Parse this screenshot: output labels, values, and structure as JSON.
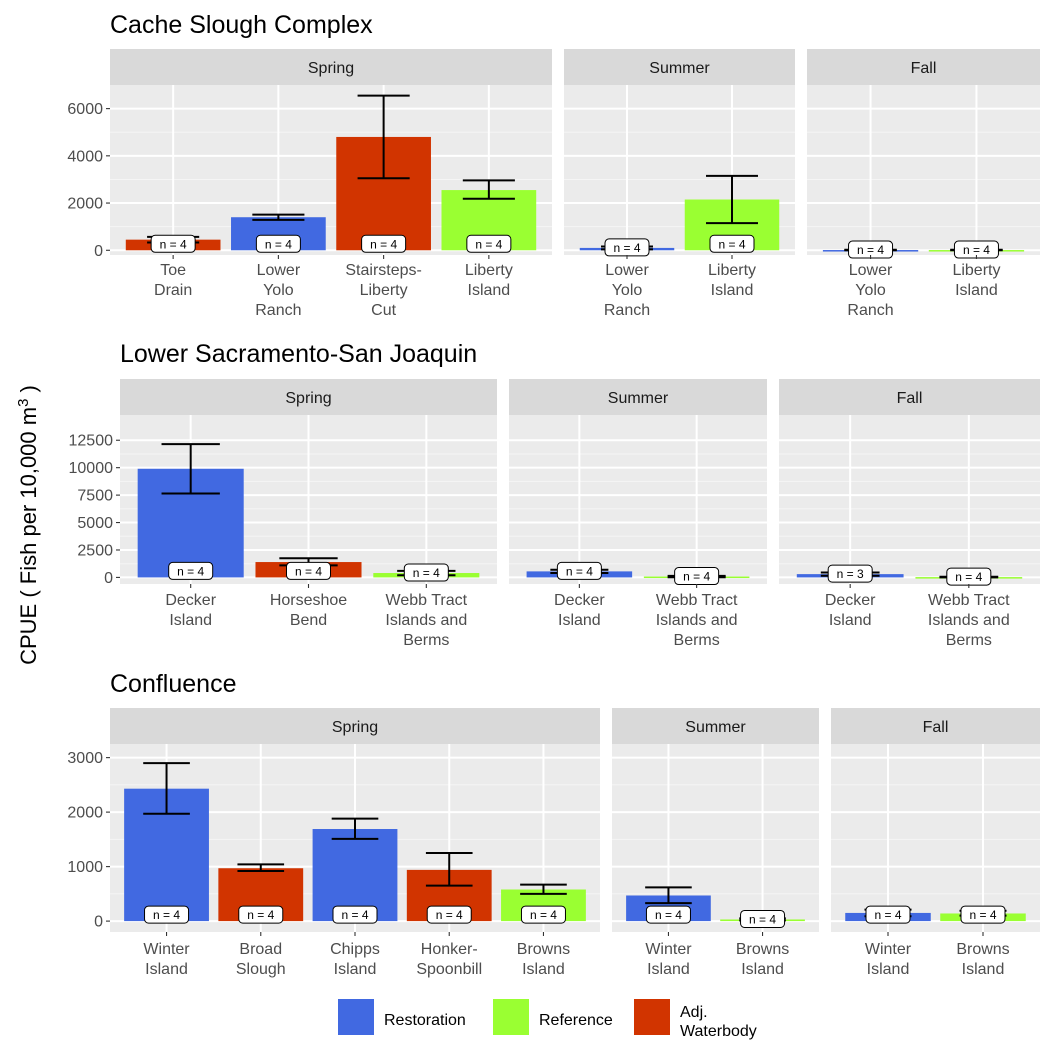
{
  "y_axis_label": "CPUE ( Fish per 10,000 m",
  "y_axis_label_sup": "3",
  "legend": [
    {
      "label": "Restoration",
      "color": "#4169E1"
    },
    {
      "label": "Reference",
      "color": "#9AFF32"
    },
    {
      "label": "Adj.\nWaterbody",
      "color": "#D13400"
    }
  ],
  "chart_data": [
    {
      "type": "bar",
      "title": "Cache Slough Complex",
      "yticks": [
        0,
        2000,
        4000,
        6000
      ],
      "panels": [
        {
          "facet": "Spring",
          "bars": [
            {
              "site": "Toe\nDrain",
              "value": 450,
              "lo": 330,
              "hi": 570,
              "n": "n = 4",
              "group": "Adj. Waterbody"
            },
            {
              "site": "Lower\nYolo\nRanch",
              "value": 1400,
              "lo": 1290,
              "hi": 1510,
              "n": "n = 4",
              "group": "Restoration"
            },
            {
              "site": "Stairsteps-\nLiberty\nCut",
              "value": 4800,
              "lo": 3050,
              "hi": 6550,
              "n": "n = 4",
              "group": "Adj. Waterbody"
            },
            {
              "site": "Liberty\nIsland",
              "value": 2550,
              "lo": 2180,
              "hi": 2960,
              "n": "n = 4",
              "group": "Reference"
            }
          ]
        },
        {
          "facet": "Summer",
          "bars": [
            {
              "site": "Lower\nYolo\nRanch",
              "value": 100,
              "lo": 40,
              "hi": 160,
              "n": "n = 4",
              "group": "Restoration"
            },
            {
              "site": "Liberty\nIsland",
              "value": 2150,
              "lo": 1150,
              "hi": 3150,
              "n": "n = 4",
              "group": "Reference"
            }
          ]
        },
        {
          "facet": "Fall",
          "bars": [
            {
              "site": "Lower\nYolo\nRanch",
              "value": 10,
              "lo": 0,
              "hi": 20,
              "n": "n = 4",
              "group": "Restoration"
            },
            {
              "site": "Liberty\nIsland",
              "value": 10,
              "lo": 0,
              "hi": 20,
              "n": "n = 4",
              "group": "Reference"
            }
          ]
        }
      ]
    },
    {
      "type": "bar",
      "title": "Lower Sacramento-San Joaquin",
      "yticks": [
        0,
        2500,
        5000,
        7500,
        10000,
        12500
      ],
      "panels": [
        {
          "facet": "Spring",
          "bars": [
            {
              "site": "Decker\nIsland",
              "value": 9900,
              "lo": 7650,
              "hi": 12150,
              "n": "n = 4",
              "group": "Restoration"
            },
            {
              "site": "Horseshoe\nBend",
              "value": 1400,
              "lo": 1100,
              "hi": 1750,
              "n": "n = 4",
              "group": "Adj. Waterbody"
            },
            {
              "site": "Webb Tract\nIslands and\nBerms",
              "value": 400,
              "lo": 200,
              "hi": 600,
              "n": "n = 4",
              "group": "Reference"
            }
          ]
        },
        {
          "facet": "Summer",
          "bars": [
            {
              "site": "Decker\nIsland",
              "value": 550,
              "lo": 400,
              "hi": 700,
              "n": "n = 4",
              "group": "Restoration"
            },
            {
              "site": "Webb Tract\nIslands and\nBerms",
              "value": 80,
              "lo": 20,
              "hi": 140,
              "n": "n = 4",
              "group": "Reference"
            }
          ]
        },
        {
          "facet": "Fall",
          "bars": [
            {
              "site": "Decker\nIsland",
              "value": 300,
              "lo": 150,
              "hi": 450,
              "n": "n = 3",
              "group": "Restoration"
            },
            {
              "site": "Webb Tract\nIslands and\nBerms",
              "value": 30,
              "lo": 0,
              "hi": 60,
              "n": "n = 4",
              "group": "Reference"
            }
          ]
        }
      ]
    },
    {
      "type": "bar",
      "title": "Confluence",
      "yticks": [
        0,
        1000,
        2000,
        3000
      ],
      "panels": [
        {
          "facet": "Spring",
          "bars": [
            {
              "site": "Winter\nIsland",
              "value": 2430,
              "lo": 1970,
              "hi": 2900,
              "n": "n = 4",
              "group": "Restoration"
            },
            {
              "site": "Broad\nSlough",
              "value": 970,
              "lo": 920,
              "hi": 1040,
              "n": "n = 4",
              "group": "Adj. Waterbody"
            },
            {
              "site": "Chipps\nIsland",
              "value": 1690,
              "lo": 1510,
              "hi": 1880,
              "n": "n = 4",
              "group": "Restoration"
            },
            {
              "site": "Honker-\nSpoonbill",
              "value": 940,
              "lo": 650,
              "hi": 1250,
              "n": "n = 4",
              "group": "Adj. Waterbody"
            },
            {
              "site": "Browns\nIsland",
              "value": 580,
              "lo": 500,
              "hi": 670,
              "n": "n = 4",
              "group": "Reference"
            }
          ]
        },
        {
          "facet": "Summer",
          "bars": [
            {
              "site": "Winter\nIsland",
              "value": 470,
              "lo": 330,
              "hi": 620,
              "n": "n = 4",
              "group": "Restoration"
            },
            {
              "site": "Browns\nIsland",
              "value": 30,
              "lo": 10,
              "hi": 50,
              "n": "n = 4",
              "group": "Reference"
            }
          ]
        },
        {
          "facet": "Fall",
          "bars": [
            {
              "site": "Winter\nIsland",
              "value": 150,
              "lo": 90,
              "hi": 210,
              "n": "n = 4",
              "group": "Restoration"
            },
            {
              "site": "Browns\nIsland",
              "value": 140,
              "lo": 100,
              "hi": 190,
              "n": "n = 4",
              "group": "Reference"
            }
          ]
        }
      ]
    }
  ]
}
